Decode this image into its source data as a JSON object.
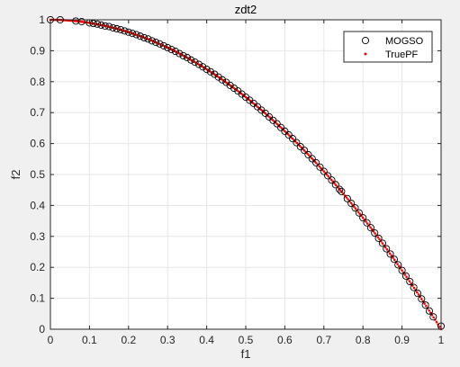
{
  "colors": {
    "figure_bg": "#f0f0f0",
    "axes_bg": "#ffffff",
    "axis_color": "#262626",
    "grid_color": "#e6e6e6",
    "mogso_edge": "#000000",
    "truepf_color": "#ff0000"
  },
  "chart_data": {
    "type": "scatter",
    "title": "zdt2",
    "xlabel": "f1",
    "ylabel": "f2",
    "xlim": [
      0,
      1
    ],
    "ylim": [
      0,
      1
    ],
    "grid": true,
    "legend_position": "top-right",
    "xticks": [
      "0",
      "0.1",
      "0.2",
      "0.3",
      "0.4",
      "0.5",
      "0.6",
      "0.7",
      "0.8",
      "0.9",
      "1"
    ],
    "yticks": [
      "0",
      "0.1",
      "0.2",
      "0.3",
      "0.4",
      "0.5",
      "0.6",
      "0.7",
      "0.8",
      "0.9",
      "1"
    ],
    "series": [
      {
        "name": "MOGSO",
        "marker": "circle-open",
        "color": "#000000",
        "x": [
          0.0,
          0.025,
          0.065,
          0.08,
          0.1,
          0.11,
          0.12,
          0.13,
          0.14,
          0.15,
          0.16,
          0.17,
          0.18,
          0.19,
          0.2,
          0.21,
          0.22,
          0.23,
          0.24,
          0.25,
          0.26,
          0.27,
          0.28,
          0.29,
          0.3,
          0.31,
          0.32,
          0.33,
          0.34,
          0.35,
          0.36,
          0.37,
          0.38,
          0.39,
          0.4,
          0.41,
          0.42,
          0.43,
          0.44,
          0.45,
          0.46,
          0.47,
          0.48,
          0.49,
          0.5,
          0.51,
          0.52,
          0.53,
          0.54,
          0.55,
          0.56,
          0.57,
          0.58,
          0.59,
          0.6,
          0.61,
          0.62,
          0.63,
          0.64,
          0.65,
          0.66,
          0.67,
          0.68,
          0.69,
          0.7,
          0.71,
          0.72,
          0.73,
          0.74,
          0.745,
          0.76,
          0.77,
          0.78,
          0.79,
          0.8,
          0.81,
          0.82,
          0.83,
          0.84,
          0.85,
          0.86,
          0.87,
          0.88,
          0.89,
          0.9,
          0.91,
          0.92,
          0.93,
          0.94,
          0.95,
          0.96,
          0.97,
          0.98,
          1.0
        ],
        "y": [
          1.0,
          1.0,
          0.996,
          0.994,
          0.99,
          0.988,
          0.986,
          0.983,
          0.98,
          0.978,
          0.974,
          0.971,
          0.968,
          0.964,
          0.96,
          0.956,
          0.952,
          0.947,
          0.942,
          0.938,
          0.932,
          0.927,
          0.922,
          0.916,
          0.91,
          0.904,
          0.898,
          0.891,
          0.884,
          0.878,
          0.87,
          0.863,
          0.856,
          0.848,
          0.84,
          0.832,
          0.824,
          0.815,
          0.806,
          0.798,
          0.788,
          0.779,
          0.77,
          0.76,
          0.75,
          0.74,
          0.73,
          0.719,
          0.708,
          0.698,
          0.686,
          0.675,
          0.664,
          0.652,
          0.64,
          0.628,
          0.616,
          0.603,
          0.59,
          0.578,
          0.564,
          0.551,
          0.538,
          0.524,
          0.51,
          0.496,
          0.482,
          0.467,
          0.452,
          0.445,
          0.422,
          0.407,
          0.392,
          0.376,
          0.36,
          0.344,
          0.328,
          0.311,
          0.294,
          0.278,
          0.26,
          0.243,
          0.226,
          0.208,
          0.19,
          0.172,
          0.154,
          0.135,
          0.116,
          0.098,
          0.078,
          0.059,
          0.04,
          0.01
        ]
      },
      {
        "name": "TruePF",
        "marker": "point",
        "color": "#ff0000",
        "function": "f2 = 1 - f1^2",
        "x_range": [
          0,
          1
        ]
      }
    ]
  }
}
